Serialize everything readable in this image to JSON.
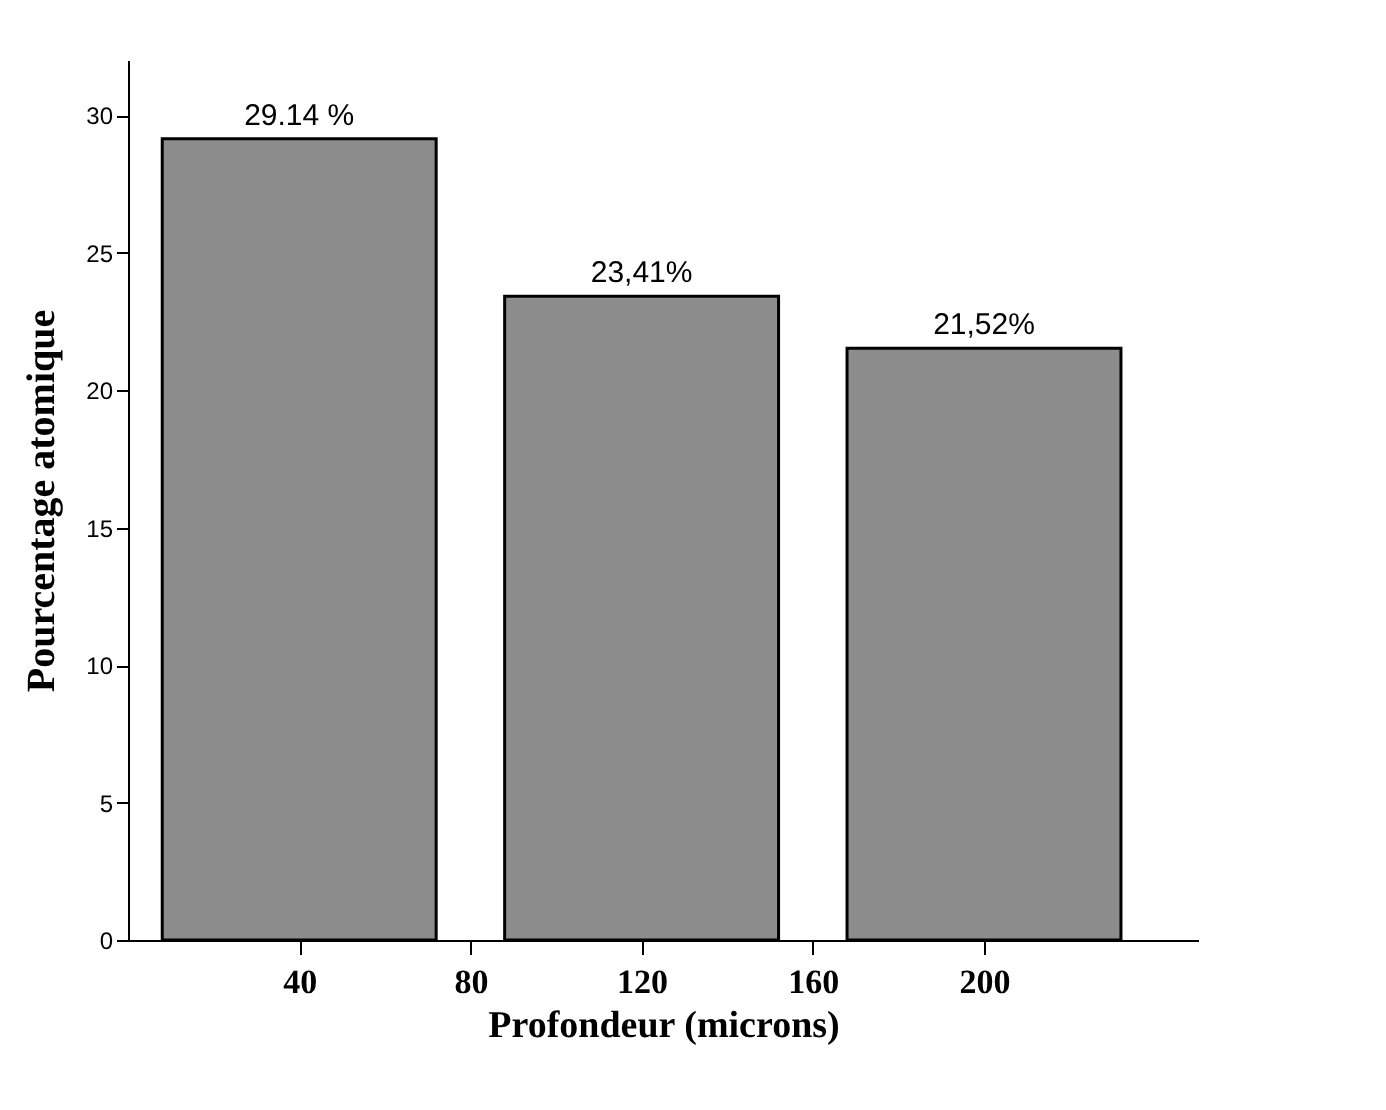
{
  "chart_data": {
    "type": "bar",
    "xlabel": "Profondeur (microns)",
    "ylabel": "Pourcentage atomique",
    "x": [
      40,
      120,
      200
    ],
    "values": [
      29.14,
      23.41,
      21.52
    ],
    "color": "#8c8c8c",
    "value_labels": [
      "29.14 %",
      "23,41%",
      "21,52%"
    ],
    "xlim": [
      0,
      250
    ],
    "xticks": [
      40,
      80,
      120,
      160,
      200
    ],
    "ylim": [
      0,
      32
    ],
    "yticks": [
      0,
      5,
      10,
      15,
      20,
      25,
      30
    ],
    "grid": false
  }
}
